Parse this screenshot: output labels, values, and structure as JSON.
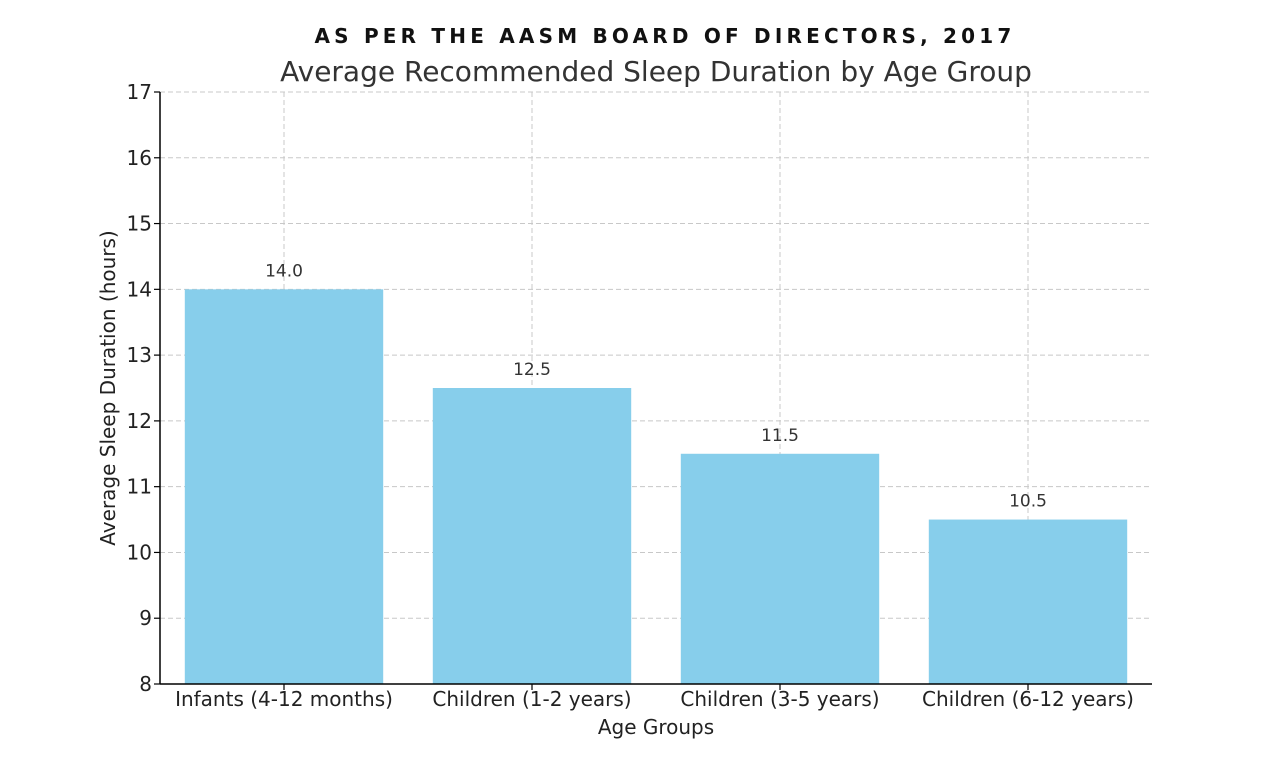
{
  "chart_data": {
    "type": "bar",
    "subtitle": "AS PER THE AASM BOARD OF DIRECTORS, 2017",
    "title": "Average Recommended Sleep Duration by Age Group",
    "xlabel": "Age Groups",
    "ylabel": "Average Sleep Duration (hours)",
    "categories": [
      "Infants (4-12 months)",
      "Children (1-2 years)",
      "Children (3-5 years)",
      "Children (6-12 years)"
    ],
    "values": [
      14.0,
      12.5,
      11.5,
      10.5
    ],
    "value_labels": [
      "14.0",
      "12.5",
      "11.5",
      "10.5"
    ],
    "ylim": [
      8,
      17
    ],
    "yticks": [
      8,
      9,
      10,
      11,
      12,
      13,
      14,
      15,
      16,
      17
    ],
    "grid": true,
    "bar_color": "#87CEEB",
    "legend": null
  }
}
